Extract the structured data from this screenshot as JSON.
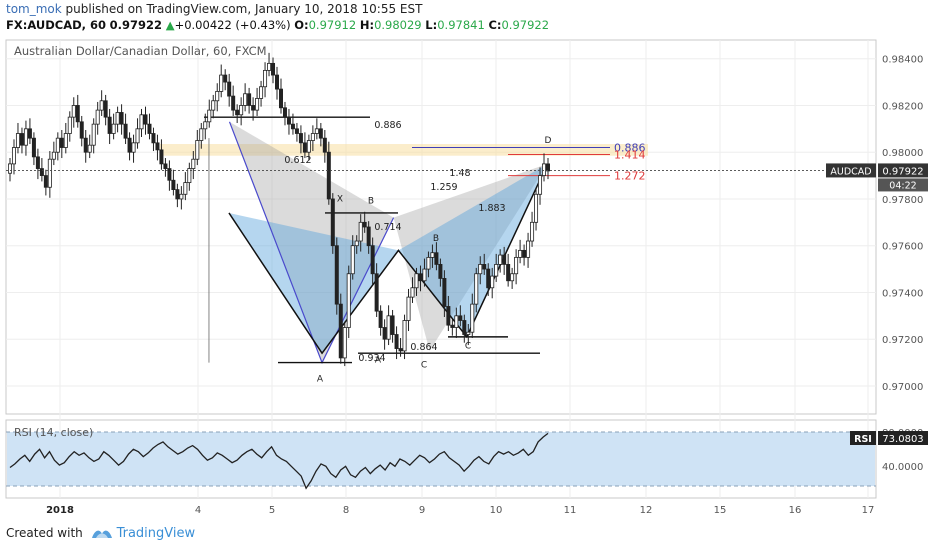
{
  "header": {
    "author": "tom_mok",
    "published_text": " published on TradingView.com, January 10, 2018 10:55 EST",
    "symbol": "FX:AUDCAD, 60",
    "last": "0.97922",
    "change_arrow": "▲",
    "change": "+0.00422 (+0.43%)",
    "o_label": "O:",
    "o_value": "0.97912",
    "h_label": "H:",
    "h_value": "0.98029",
    "l_label": "L:",
    "l_value": "0.97841",
    "c_label": "C:",
    "c_value": "0.97922"
  },
  "footer": {
    "created_with": "Created with",
    "brand": "TradingView"
  },
  "chart_data": [
    {
      "type": "candlestick",
      "title": "Australian Dollar/Canadian Dollar, 60, FXCM",
      "x_tick_labels": [
        "2018",
        "4",
        "5",
        "8",
        "9",
        "10",
        "11",
        "12",
        "15",
        "16",
        "17"
      ],
      "y_ticks": [
        0.97,
        0.972,
        0.974,
        0.976,
        0.978,
        0.98,
        0.982,
        0.984
      ],
      "y_tick_labels": [
        "0.97000",
        "0.97200",
        "0.97400",
        "0.97600",
        "0.97800",
        "0.98000",
        "0.98200",
        "0.98400"
      ],
      "ylim": [
        0.9688,
        0.9848
      ],
      "price_label": {
        "symbol": "AUDCAD",
        "value": "0.97922",
        "countdown": "04:22"
      },
      "series": [
        {
          "values": [
            0.9795,
            0.9802,
            0.9808,
            0.9803,
            0.981,
            0.9806,
            0.9798,
            0.9793,
            0.979,
            0.9785,
            0.9797,
            0.98,
            0.9806,
            0.9802,
            0.9808,
            0.9815,
            0.982,
            0.9813,
            0.9806,
            0.98,
            0.9803,
            0.9812,
            0.9818,
            0.9822,
            0.9815,
            0.9808,
            0.9812,
            0.9817,
            0.9812,
            0.9806,
            0.98,
            0.9804,
            0.981,
            0.9816,
            0.9812,
            0.9808,
            0.9804,
            0.9801,
            0.9795,
            0.9793,
            0.9788,
            0.9784,
            0.978,
            0.9782,
            0.9787,
            0.9793,
            0.9797,
            0.9805,
            0.981,
            0.9813,
            0.9818,
            0.9822,
            0.9826,
            0.9833,
            0.983,
            0.9824,
            0.9818,
            0.9816,
            0.982,
            0.9825,
            0.982,
            0.9818,
            0.9823,
            0.9828,
            0.9835,
            0.9838,
            0.9833,
            0.9827,
            0.9819,
            0.9815,
            0.9812,
            0.981,
            0.9808,
            0.9804,
            0.98,
            0.9805,
            0.9808,
            0.981,
            0.9806,
            0.98,
            0.978,
            0.976,
            0.9735,
            0.9712,
            0.9725,
            0.9748,
            0.976,
            0.9762,
            0.977,
            0.9768,
            0.976,
            0.9748,
            0.9732,
            0.9725,
            0.972,
            0.973,
            0.9722,
            0.9716,
            0.9715,
            0.9728,
            0.9738,
            0.9742,
            0.9748,
            0.9745,
            0.975,
            0.9755,
            0.9757,
            0.9752,
            0.9746,
            0.9734,
            0.9726,
            0.9725,
            0.973,
            0.9728,
            0.9722,
            0.9723,
            0.9735,
            0.9748,
            0.9752,
            0.975,
            0.9742,
            0.9747,
            0.9752,
            0.9756,
            0.9752,
            0.9745,
            0.9748,
            0.9755,
            0.9758,
            0.9755,
            0.9762,
            0.977,
            0.9782,
            0.979,
            0.9795,
            0.9792
          ]
        }
      ]
    },
    {
      "type": "line",
      "title": "RSI (14, close)",
      "y_tick_labels": [
        "80.0000",
        "40.0000"
      ],
      "ylim": [
        20,
        84
      ],
      "band": [
        30,
        70
      ],
      "last_label": {
        "name": "RSI",
        "value": "73.0803"
      },
      "series": [
        {
          "values": [
            45,
            48,
            52,
            55,
            50,
            56,
            60,
            53,
            58,
            51,
            47,
            49,
            54,
            58,
            55,
            57,
            53,
            50,
            52,
            58,
            55,
            51,
            47,
            50,
            56,
            60,
            58,
            54,
            57,
            61,
            64,
            66,
            62,
            59,
            56,
            58,
            61,
            63,
            60,
            55,
            51,
            53,
            57,
            55,
            52,
            49,
            51,
            55,
            58,
            60,
            56,
            53,
            58,
            62,
            55,
            52,
            50,
            46,
            42,
            38,
            28,
            34,
            42,
            48,
            46,
            40,
            37,
            43,
            46,
            39,
            37,
            42,
            45,
            40,
            44,
            47,
            43,
            49,
            46,
            52,
            50,
            47,
            51,
            55,
            53,
            49,
            52,
            56,
            58,
            53,
            50,
            47,
            42,
            46,
            51,
            54,
            50,
            48,
            54,
            58,
            56,
            58,
            55,
            57,
            60,
            55,
            58,
            66,
            70,
            73
          ]
        }
      ]
    }
  ],
  "pattern": {
    "points": [
      {
        "label": "X",
        "value": 0.9774
      },
      {
        "label": "A",
        "value": 0.9714
      },
      {
        "label": "B",
        "value": 0.9758
      },
      {
        "label": "C",
        "value": 0.9721
      },
      {
        "label": "D",
        "value": 0.9795
      }
    ],
    "ratios": [
      "0.886",
      "0.612",
      "0.714",
      "0.934",
      "0.864",
      "1.48",
      "1.259",
      "1.883"
    ],
    "levels": [
      {
        "label": "0.886",
        "value": 0.9802,
        "color": "#3f3fb8"
      },
      {
        "label": "1.414",
        "value": 0.9799,
        "color": "#e03b3b"
      },
      {
        "label": "1.272",
        "value": 0.979,
        "color": "#e03b3b"
      }
    ],
    "zone": {
      "from": 0.97985,
      "to": 0.98035
    }
  }
}
